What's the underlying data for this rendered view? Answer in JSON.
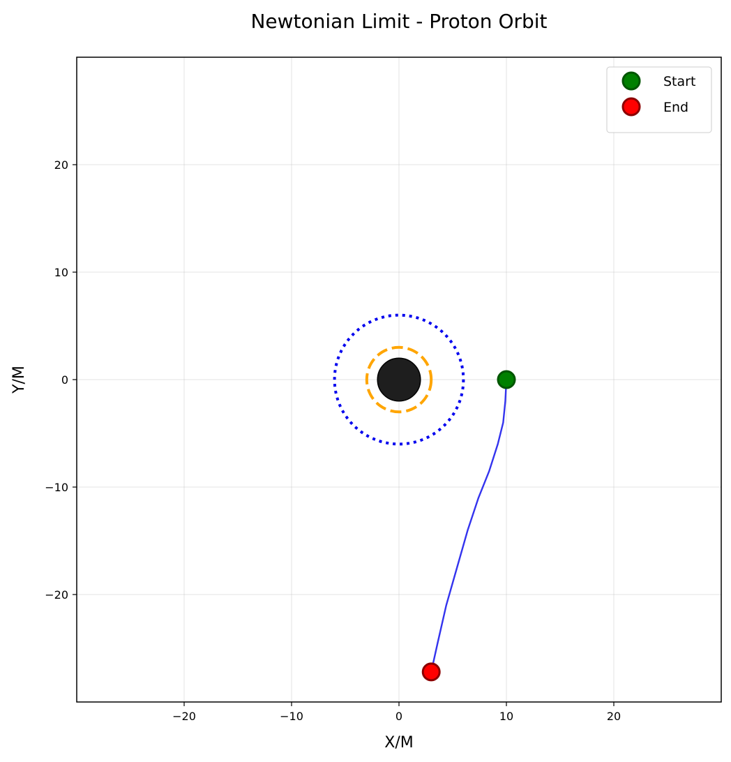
{
  "chart_data": {
    "type": "line",
    "title": "Newtonian Limit - Proton Orbit",
    "xlabel": "X/M",
    "ylabel": "Y/M",
    "xlim": [
      -30,
      30
    ],
    "ylim": [
      -30,
      30
    ],
    "xticks": [
      -20,
      -10,
      0,
      10,
      20
    ],
    "yticks": [
      -20,
      -10,
      0,
      10,
      20
    ],
    "xtick_labels": [
      "−20",
      "−10",
      "0",
      "10",
      "20"
    ],
    "ytick_labels": [
      "−20",
      "−10",
      "0",
      "10",
      "20"
    ],
    "grid": true,
    "legend_position": "top-right",
    "series": [
      {
        "kind": "trajectory",
        "color": "#3333ee",
        "x": [
          10,
          9.9,
          9.7,
          9.2,
          8.4,
          7.4,
          6.4,
          5.4,
          4.4,
          3.6,
          3.0
        ],
        "y": [
          0,
          -2,
          -4,
          -6,
          -8.5,
          -11,
          -14,
          -17.5,
          -21,
          -24.5,
          -27.2
        ]
      },
      {
        "kind": "point",
        "name": "Start",
        "color": "#008000",
        "edge_color": "#005500",
        "x": [
          10
        ],
        "y": [
          0
        ]
      },
      {
        "kind": "point",
        "name": "End",
        "color": "#ff0000",
        "edge_color": "#8b0000",
        "x": [
          3.0
        ],
        "y": [
          -27.2
        ]
      }
    ],
    "circles": [
      {
        "kind": "black-hole",
        "radius": 2,
        "color": "#1a1a1a",
        "style": "filled"
      },
      {
        "kind": "photon-sphere",
        "radius": 3,
        "color": "#ffa500",
        "style": "dashed"
      },
      {
        "kind": "isco",
        "radius": 6,
        "color": "#0000ee",
        "style": "dotted"
      }
    ]
  }
}
